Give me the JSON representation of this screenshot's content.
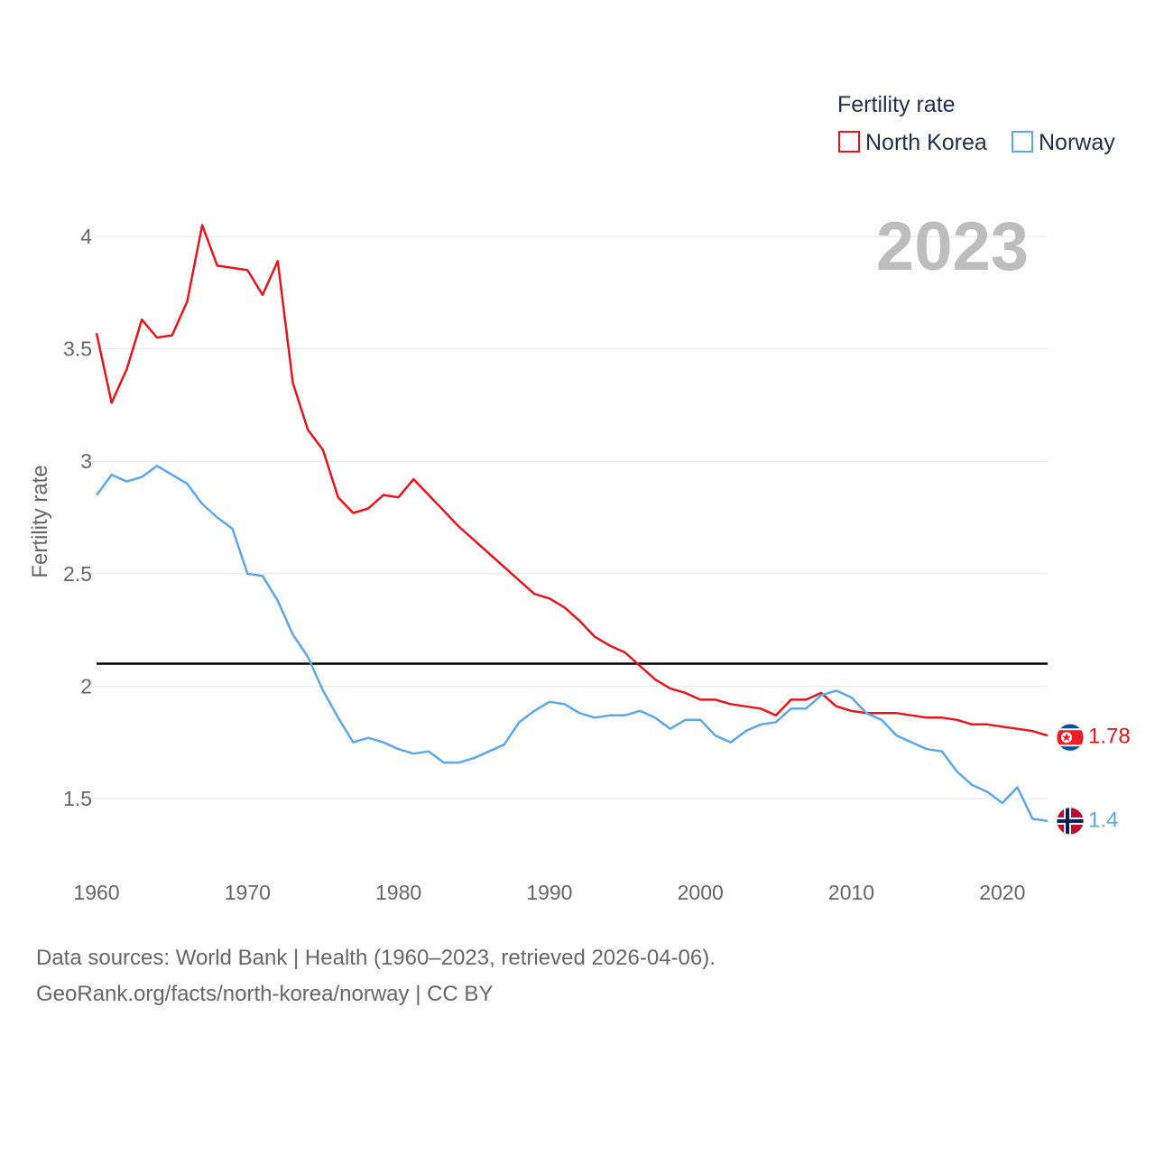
{
  "chart_data": {
    "type": "line",
    "title": "Fertility rate",
    "ylabel": "Fertility rate",
    "xlabel": "",
    "year_label": "2023",
    "x": [
      1960,
      1961,
      1962,
      1963,
      1964,
      1965,
      1966,
      1967,
      1968,
      1969,
      1970,
      1971,
      1972,
      1973,
      1974,
      1975,
      1976,
      1977,
      1978,
      1979,
      1980,
      1981,
      1982,
      1983,
      1984,
      1985,
      1986,
      1987,
      1988,
      1989,
      1990,
      1991,
      1992,
      1993,
      1994,
      1995,
      1996,
      1997,
      1998,
      1999,
      2000,
      2001,
      2002,
      2003,
      2004,
      2005,
      2006,
      2007,
      2008,
      2009,
      2010,
      2011,
      2012,
      2013,
      2014,
      2015,
      2016,
      2017,
      2018,
      2019,
      2020,
      2021,
      2022,
      2023
    ],
    "series": [
      {
        "name": "North Korea",
        "color": "#e8141c",
        "end_label": "1.78",
        "values": [
          3.57,
          3.26,
          3.41,
          3.63,
          3.55,
          3.56,
          3.71,
          4.05,
          3.87,
          3.86,
          3.85,
          3.74,
          3.89,
          3.35,
          3.14,
          3.05,
          2.84,
          2.77,
          2.79,
          2.85,
          2.84,
          2.92,
          2.85,
          2.78,
          2.71,
          2.65,
          2.59,
          2.53,
          2.47,
          2.41,
          2.39,
          2.35,
          2.29,
          2.22,
          2.18,
          2.15,
          2.09,
          2.03,
          1.99,
          1.97,
          1.94,
          1.94,
          1.92,
          1.91,
          1.9,
          1.87,
          1.94,
          1.94,
          1.97,
          1.91,
          1.89,
          1.88,
          1.88,
          1.88,
          1.87,
          1.86,
          1.86,
          1.85,
          1.83,
          1.83,
          1.82,
          1.81,
          1.8,
          1.78
        ]
      },
      {
        "name": "Norway",
        "color": "#5ba7e8",
        "end_label": "1.4",
        "values": [
          2.85,
          2.94,
          2.91,
          2.93,
          2.98,
          2.94,
          2.9,
          2.81,
          2.75,
          2.7,
          2.5,
          2.49,
          2.38,
          2.23,
          2.13,
          1.98,
          1.86,
          1.75,
          1.77,
          1.75,
          1.72,
          1.7,
          1.71,
          1.66,
          1.66,
          1.68,
          1.71,
          1.74,
          1.84,
          1.89,
          1.93,
          1.92,
          1.88,
          1.86,
          1.87,
          1.87,
          1.89,
          1.86,
          1.81,
          1.85,
          1.85,
          1.78,
          1.75,
          1.8,
          1.83,
          1.84,
          1.9,
          1.9,
          1.96,
          1.98,
          1.95,
          1.88,
          1.85,
          1.78,
          1.75,
          1.72,
          1.71,
          1.62,
          1.56,
          1.53,
          1.48,
          1.55,
          1.41,
          1.4
        ]
      }
    ],
    "reference_line": {
      "value": 2.1,
      "color": "#000000"
    },
    "y_ticks": [
      1.5,
      2,
      2.5,
      3,
      3.5,
      4
    ],
    "y_tick_labels": [
      "1.5",
      "2",
      "2.5",
      "3",
      "3.5",
      "4"
    ],
    "x_ticks": [
      1960,
      1970,
      1980,
      1990,
      2000,
      2010,
      2020
    ],
    "x_tick_labels": [
      "1960",
      "1970",
      "1980",
      "1990",
      "2000",
      "2010",
      "2020"
    ],
    "xlim": [
      1960,
      2023
    ],
    "ylim": [
      1.5,
      4
    ],
    "legend": {
      "title": "Fertility rate",
      "position": "top-right",
      "items": [
        "North Korea",
        "Norway"
      ]
    }
  },
  "footer": {
    "line1": "Data sources: World Bank | Health (1960–2023, retrieved 2026-04-06).",
    "line2": "GeoRank.org/facts/north-korea/norway | CC BY"
  },
  "flags": {
    "north_korea": {
      "blue": "#024fa2",
      "red": "#ed1c27",
      "white": "#ffffff"
    },
    "norway": {
      "red": "#ba0c2f",
      "blue": "#00205b",
      "white": "#ffffff"
    }
  }
}
